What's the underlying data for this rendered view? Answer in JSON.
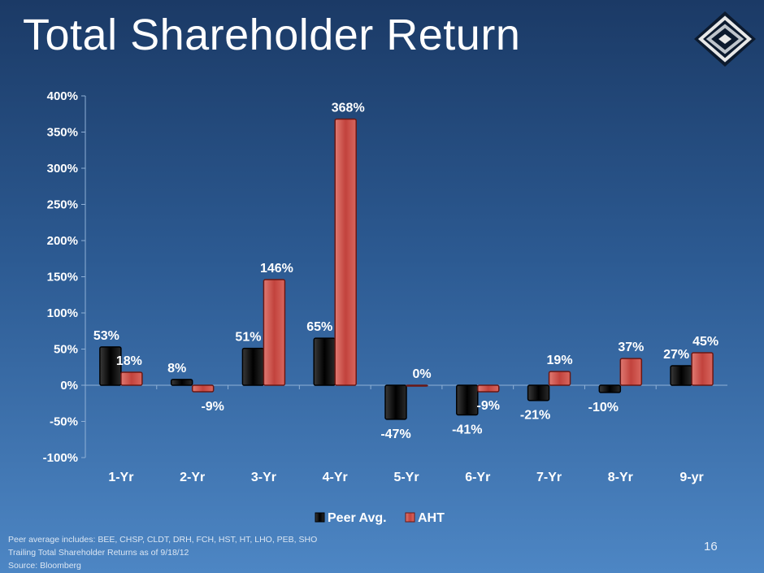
{
  "slide": {
    "title": "Total Shareholder Return",
    "page_number": "16",
    "footnotes": [
      "Peer average includes:  BEE, CHSP, CLDT, DRH, FCH, HST, HT, LHO, PEB, SHO",
      "Trailing Total Shareholder Returns as of 9/18/12",
      "Source: Bloomberg"
    ],
    "logo_icon": "diamond-logo-icon"
  },
  "chart_data": {
    "type": "bar",
    "title": "",
    "xlabel": "",
    "ylabel": "",
    "categories": [
      "1-Yr",
      "2-Yr",
      "3-Yr",
      "4-Yr",
      "5-Yr",
      "6-Yr",
      "7-Yr",
      "8-Yr",
      "9-yr"
    ],
    "series": [
      {
        "name": "Peer Avg.",
        "values": [
          53,
          8,
          51,
          65,
          -47,
          -41,
          -21,
          -10,
          27
        ],
        "labels": [
          "53%",
          "8%",
          "51%",
          "65%",
          "-47%",
          "-41%",
          "-21%",
          "-10%",
          "27%"
        ],
        "color": "#111111"
      },
      {
        "name": "AHT",
        "values": [
          18,
          -9,
          146,
          368,
          0,
          -9,
          19,
          37,
          45
        ],
        "labels": [
          "18%",
          "-9%",
          "146%",
          "368%",
          "0%",
          "-9%",
          "19%",
          "37%",
          "45%"
        ],
        "color": "#c94a44"
      }
    ],
    "ylim": [
      -100,
      400
    ],
    "yticks": [
      -100,
      -50,
      0,
      50,
      100,
      150,
      200,
      250,
      300,
      350,
      400
    ],
    "ytick_labels": [
      "-100%",
      "-50%",
      "0%",
      "50%",
      "100%",
      "150%",
      "200%",
      "250%",
      "300%",
      "350%",
      "400%"
    ],
    "grid": false,
    "legend_position": "bottom"
  }
}
